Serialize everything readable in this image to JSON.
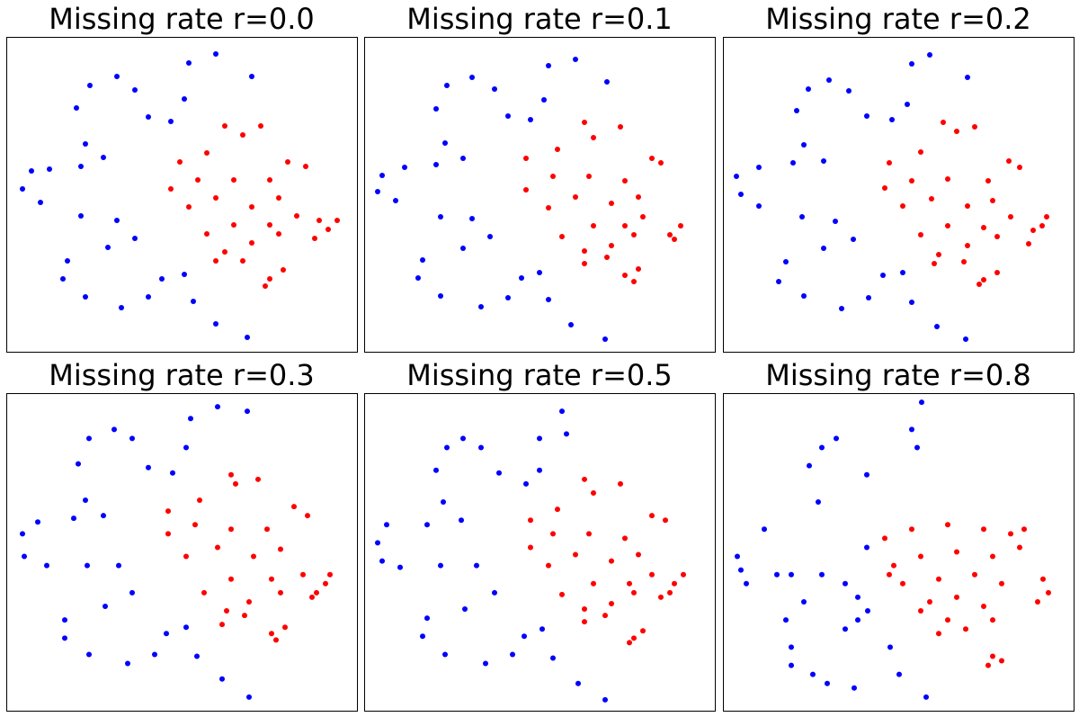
{
  "chart_data": [
    {
      "type": "scatter",
      "title": "Missing rate r=0.0",
      "xlim": [
        0,
        390
      ],
      "ylim": [
        0,
        350
      ],
      "series": [
        {
          "color": "#0000ff",
          "x": [
            273,
            233,
            203,
            198,
            183,
            158,
            143,
            123,
            93,
            78,
            88,
            108,
            83,
            48,
            28,
            18,
            38,
            83,
            123,
            143,
            113,
            68,
            63,
            88,
            128,
            158,
            173,
            198,
            208,
            233,
            268
          ],
          "y": [
            306,
            331,
            321,
            281,
            256,
            261,
            291,
            306,
            296,
            271,
            231,
            216,
            206,
            203,
            201,
            181,
            166,
            151,
            146,
            126,
            116,
            101,
            81,
            61,
            49,
            61,
            81,
            86,
            56,
            31,
            16
          ]
        },
        {
          "color": "#ff0000",
          "x": [
            193,
            223,
            263,
            283,
            243,
            313,
            333,
            293,
            253,
            213,
            183,
            203,
            233,
            273,
            303,
            323,
            293,
            253,
            223,
            243,
            273,
            303,
            233,
            263,
            343,
            358,
            368,
            348,
            293,
            308,
            288
          ],
          "y": [
            211,
            221,
            241,
            251,
            251,
            211,
            206,
            191,
            191,
            191,
            181,
            161,
            171,
            161,
            171,
            151,
            141,
            141,
            131,
            111,
            121,
            131,
            101,
            101,
            126,
            136,
            146,
            146,
            81,
            91,
            73
          ]
        }
      ]
    },
    {
      "type": "scatter",
      "title": "Missing rate r=0.1",
      "xlim": [
        0,
        390
      ],
      "ylim": [
        0,
        350
      ],
      "series": [
        {
          "color": "#0000ff",
          "x": [
            270,
            235,
            205,
            200,
            185,
            160,
            145,
            120,
            92,
            80,
            90,
            110,
            80,
            45,
            20,
            15,
            35,
            85,
            120,
            140,
            110,
            65,
            60,
            85,
            130,
            160,
            175,
            195,
            205,
            230,
            268
          ],
          "y": [
            300,
            325,
            318,
            280,
            258,
            262,
            292,
            305,
            296,
            270,
            232,
            215,
            208,
            205,
            196,
            178,
            168,
            150,
            148,
            128,
            115,
            102,
            82,
            62,
            50,
            60,
            82,
            88,
            58,
            30,
            14
          ]
        },
        {
          "color": "#ff0000",
          "x": [
            180,
            215,
            255,
            285,
            245,
            320,
            330,
            290,
            250,
            210,
            180,
            205,
            235,
            275,
            305,
            310,
            290,
            255,
            220,
            245,
            275,
            300,
            245,
            270,
            340,
            352,
            345,
            290,
            305,
            300
          ],
          "y": [
            215,
            225,
            238,
            250,
            255,
            215,
            210,
            190,
            195,
            195,
            180,
            160,
            172,
            165,
            172,
            150,
            140,
            140,
            128,
            112,
            118,
            130,
            98,
            105,
            130,
            140,
            125,
            85,
            92,
            78
          ]
        }
      ]
    },
    {
      "type": "scatter",
      "title": "Missing rate r=0.2",
      "xlim": [
        0,
        390
      ],
      "ylim": [
        0,
        350
      ],
      "series": [
        {
          "color": "#0000ff",
          "x": [
            272,
            230,
            210,
            205,
            188,
            160,
            140,
            118,
            95,
            82,
            90,
            112,
            78,
            40,
            15,
            20,
            40,
            88,
            125,
            145,
            112,
            70,
            62,
            90,
            132,
            162,
            178,
            200,
            210,
            238,
            270
          ],
          "y": [
            305,
            330,
            320,
            275,
            258,
            262,
            290,
            302,
            292,
            268,
            230,
            212,
            210,
            205,
            195,
            175,
            162,
            150,
            145,
            125,
            115,
            100,
            78,
            62,
            48,
            60,
            85,
            88,
            55,
            28,
            14
          ]
        },
        {
          "color": "#ff0000",
          "x": [
            185,
            220,
            260,
            280,
            245,
            318,
            330,
            295,
            250,
            210,
            180,
            200,
            232,
            272,
            300,
            320,
            290,
            250,
            220,
            240,
            272,
            305,
            235,
            268,
            340,
            355,
            360,
            345,
            290,
            305,
            285
          ],
          "y": [
            210,
            222,
            245,
            250,
            255,
            212,
            205,
            190,
            192,
            190,
            182,
            162,
            170,
            162,
            168,
            150,
            138,
            140,
            130,
            108,
            118,
            128,
            98,
            100,
            120,
            140,
            150,
            135,
            80,
            88,
            75
          ]
        }
      ]
    },
    {
      "type": "scatter",
      "title": "Missing rate r=0.3",
      "xlim": [
        0,
        390
      ],
      "ylim": [
        0,
        350
      ],
      "series": [
        {
          "color": "#0000ff",
          "x": [
            268,
            235,
            205,
            200,
            185,
            158,
            140,
            120,
            92,
            80,
            88,
            108,
            75,
            35,
            18,
            20,
            45,
            90,
            125,
            140,
            110,
            65,
            65,
            92,
            135,
            165,
            178,
            200,
            212,
            240,
            270
          ],
          "y": [
            330,
            335,
            322,
            290,
            262,
            268,
            300,
            310,
            300,
            272,
            232,
            215,
            212,
            208,
            195,
            170,
            160,
            160,
            160,
            130,
            115,
            100,
            80,
            62,
            52,
            62,
            85,
            92,
            60,
            35,
            15
          ]
        },
        {
          "color": "#ff0000",
          "x": [
            180,
            215,
            255,
            280,
            250,
            320,
            335,
            290,
            250,
            210,
            180,
            200,
            235,
            275,
            305,
            330,
            295,
            250,
            220,
            245,
            270,
            305,
            240,
            265,
            345,
            360,
            355,
            340,
            295,
            310,
            300
          ],
          "y": [
            220,
            232,
            250,
            255,
            260,
            225,
            215,
            200,
            200,
            205,
            195,
            170,
            180,
            170,
            178,
            150,
            145,
            145,
            130,
            110,
            120,
            130,
            95,
            105,
            130,
            150,
            140,
            125,
            85,
            92,
            78
          ]
        }
      ]
    },
    {
      "type": "scatter",
      "title": "Missing rate r=0.5",
      "xlim": [
        0,
        390
      ],
      "ylim": [
        0,
        350
      ],
      "series": [
        {
          "color": "#0000ff",
          "x": [
            220,
            225,
            195,
            195,
            180,
            150,
            130,
            110,
            92,
            80,
            88,
            108,
            70,
            25,
            15,
            20,
            40,
            85,
            125,
            145,
            112,
            70,
            65,
            90,
            135,
            165,
            178,
            198,
            210,
            238,
            268
          ],
          "y": [
            330,
            305,
            300,
            265,
            250,
            262,
            290,
            300,
            290,
            265,
            230,
            210,
            205,
            205,
            185,
            165,
            158,
            160,
            160,
            130,
            112,
            102,
            82,
            62,
            52,
            62,
            82,
            90,
            58,
            30,
            12
          ]
        },
        {
          "color": "#ff0000",
          "x": [
            185,
            215,
            255,
            285,
            245,
            320,
            335,
            290,
            250,
            210,
            185,
            205,
            235,
            275,
            305,
            320,
            295,
            255,
            220,
            245,
            275,
            300,
            245,
            268,
            345,
            355,
            340,
            330,
            300,
            310,
            295
          ],
          "y": [
            210,
            222,
            240,
            250,
            255,
            215,
            210,
            190,
            195,
            195,
            180,
            160,
            172,
            165,
            172,
            150,
            140,
            140,
            128,
            112,
            118,
            130,
            98,
            105,
            140,
            150,
            130,
            125,
            80,
            88,
            75
          ]
        }
      ]
    },
    {
      "type": "scatter",
      "title": "Missing rate r=0.8",
      "xlim": [
        0,
        390
      ],
      "ylim": [
        0,
        350
      ],
      "series": [
        {
          "color": "#0000ff",
          "x": [
            221,
            216,
            126,
            110,
            96,
            106,
            46,
            16,
            20,
            26,
            60,
            76,
            110,
            136,
            150,
            161,
            150,
            136,
            76,
            70,
            76,
            100,
            116,
            146,
            196,
            226,
            186,
            160,
            90,
            210,
            160
          ],
          "y": [
            340,
            290,
            300,
            290,
            270,
            230,
            200,
            170,
            155,
            140,
            150,
            150,
            150,
            140,
            125,
            110,
            100,
            90,
            70,
            100,
            50,
            40,
            30,
            25,
            40,
            15,
            70,
            180,
            120,
            310,
            260
          ]
        },
        {
          "color": "#ff0000",
          "x": [
            180,
            210,
            250,
            290,
            320,
            330,
            300,
            260,
            220,
            190,
            200,
            240,
            280,
            310,
            230,
            260,
            290,
            250,
            220,
            270,
            300,
            240,
            356,
            362,
            350,
            300,
            295,
            310,
            185,
            335
          ],
          "y": [
            190,
            200,
            205,
            200,
            195,
            180,
            170,
            175,
            170,
            160,
            140,
            145,
            150,
            140,
            120,
            125,
            115,
            100,
            110,
            90,
            100,
            85,
            145,
            130,
            120,
            60,
            50,
            55,
            150,
            200
          ]
        }
      ]
    }
  ]
}
